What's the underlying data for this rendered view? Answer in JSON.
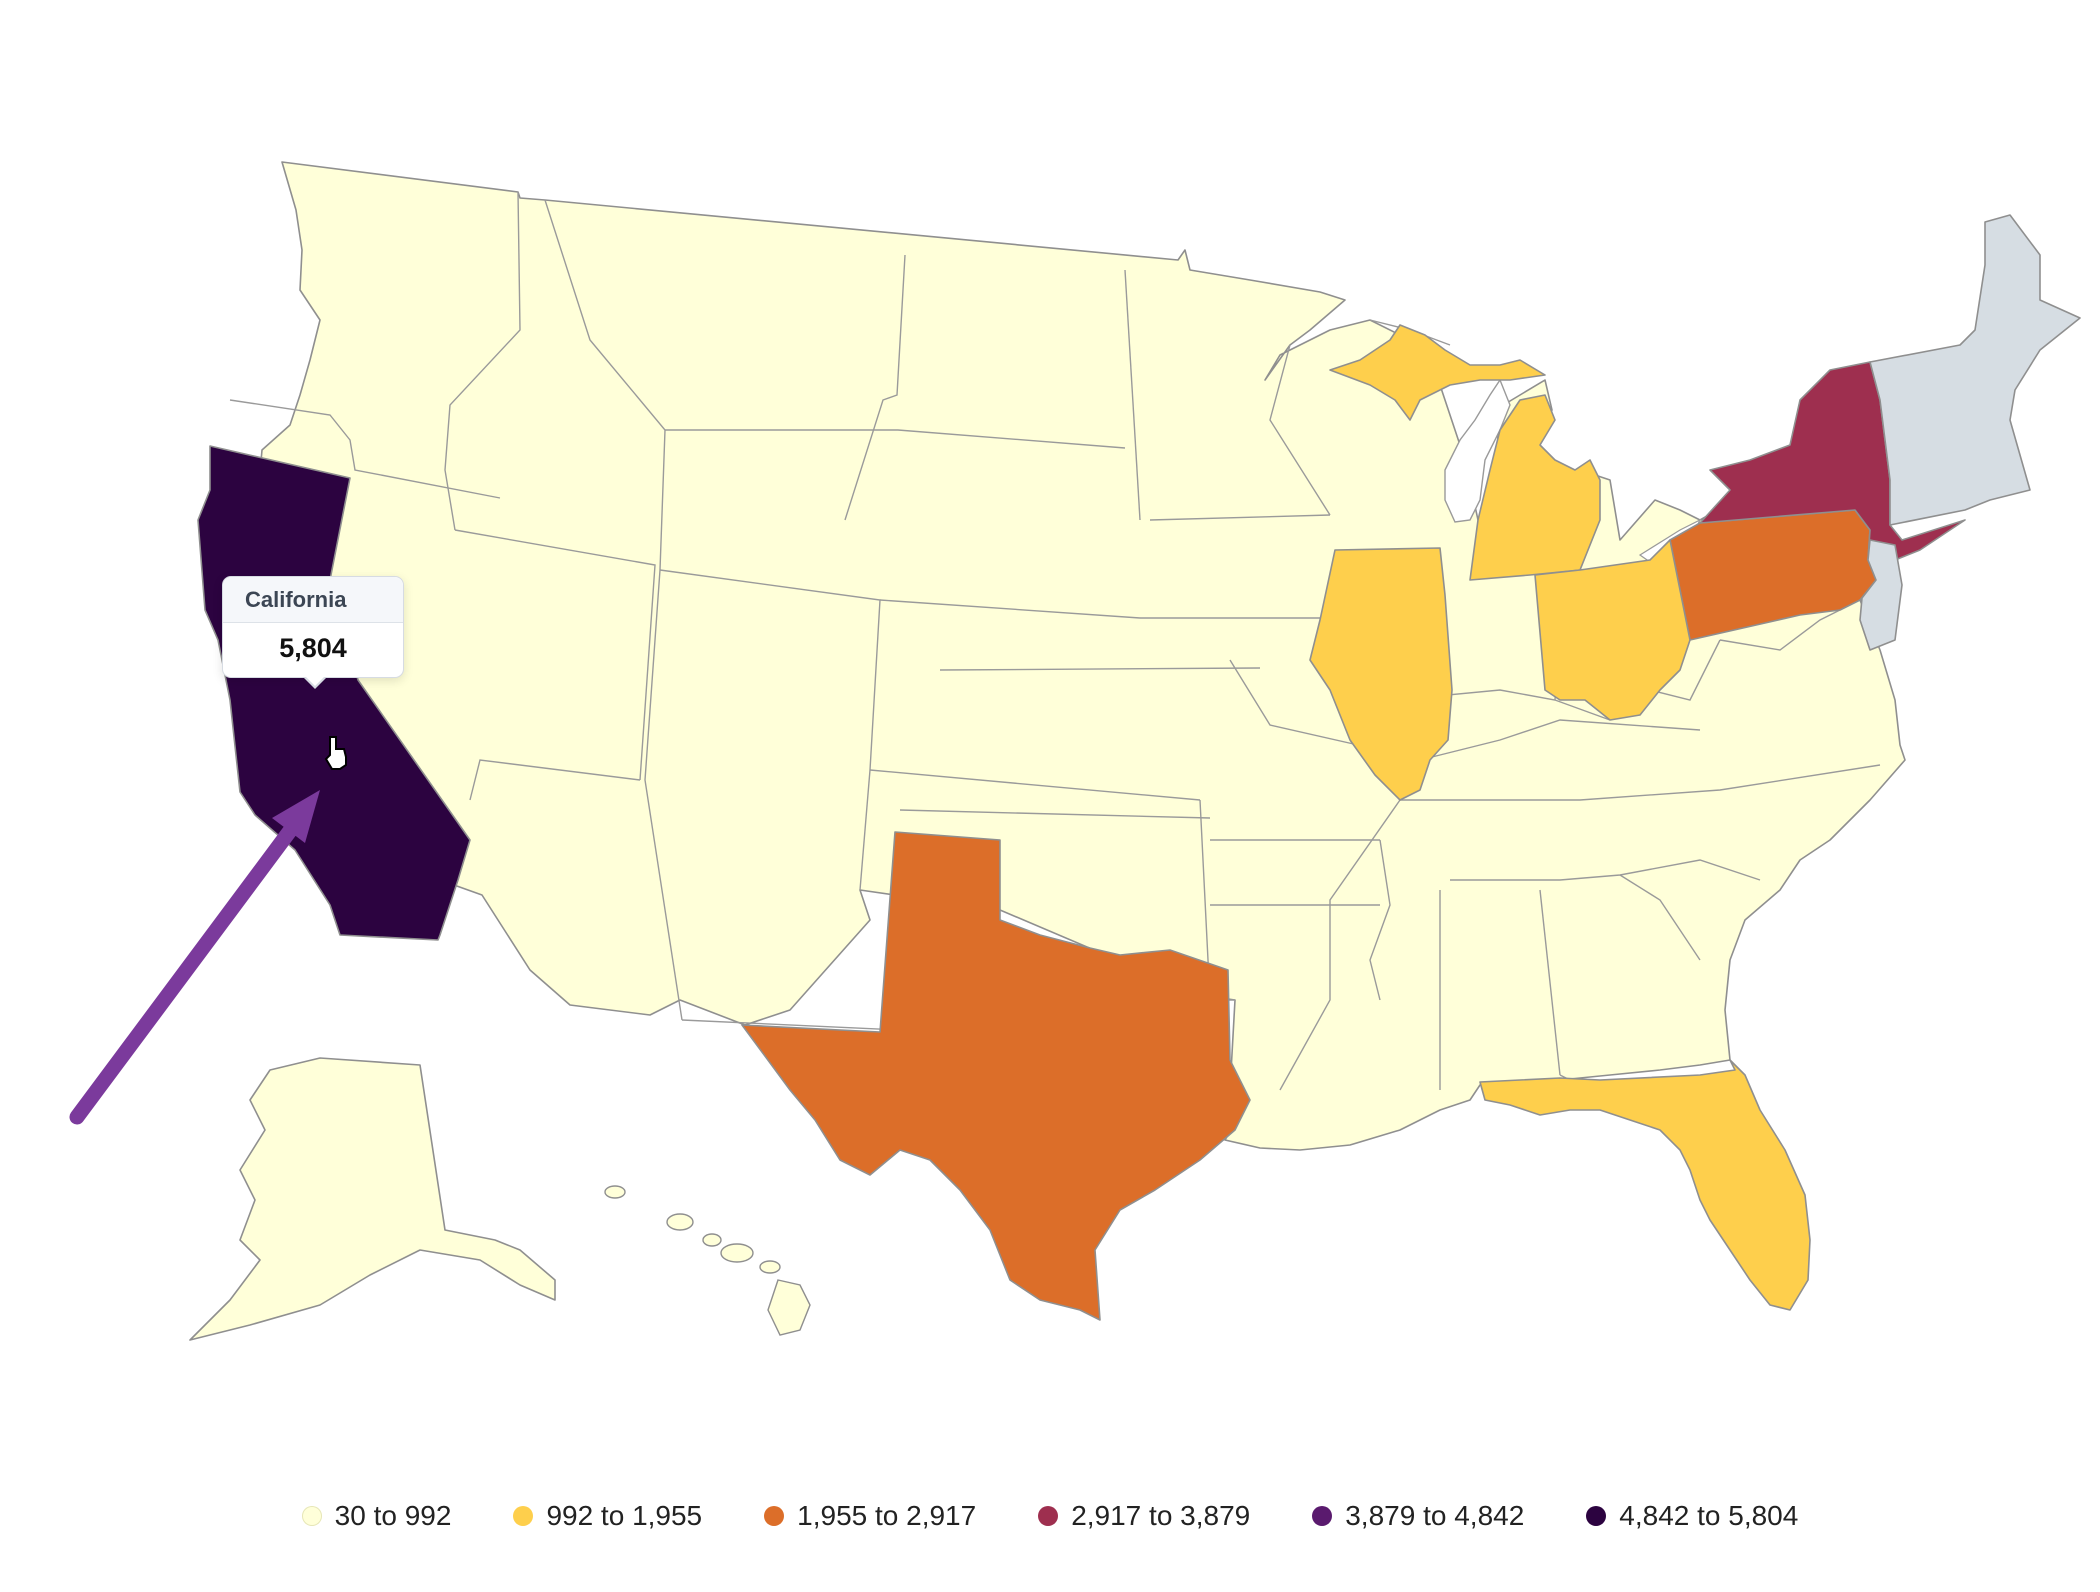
{
  "tooltip": {
    "state": "California",
    "value": "5,804"
  },
  "legend": [
    {
      "label": "30 to 992",
      "color": "#ffffd9"
    },
    {
      "label": "992 to 1,955",
      "color": "#fecf4c"
    },
    {
      "label": "1,955 to 2,917",
      "color": "#dc6e29"
    },
    {
      "label": "2,917 to 3,879",
      "color": "#9e2f4f"
    },
    {
      "label": "3,879 to 4,842",
      "color": "#5a1a6e"
    },
    {
      "label": "4,842 to 5,804",
      "color": "#2c0340"
    }
  ],
  "colors": {
    "no_data": "#d6dde3",
    "default_state": "#ffffd9",
    "arrow": "#7b3a9c"
  },
  "highlighted_states": {
    "California": "4,842 to 5,804",
    "Texas": "1,955 to 2,917",
    "Pennsylvania": "1,955 to 2,917",
    "New York": "2,917 to 3,879",
    "Illinois": "992 to 1,955",
    "Michigan": "992 to 1,955",
    "Ohio": "992 to 1,955",
    "Florida": "992 to 1,955"
  },
  "cursor_icon": "hand-pointer-icon"
}
